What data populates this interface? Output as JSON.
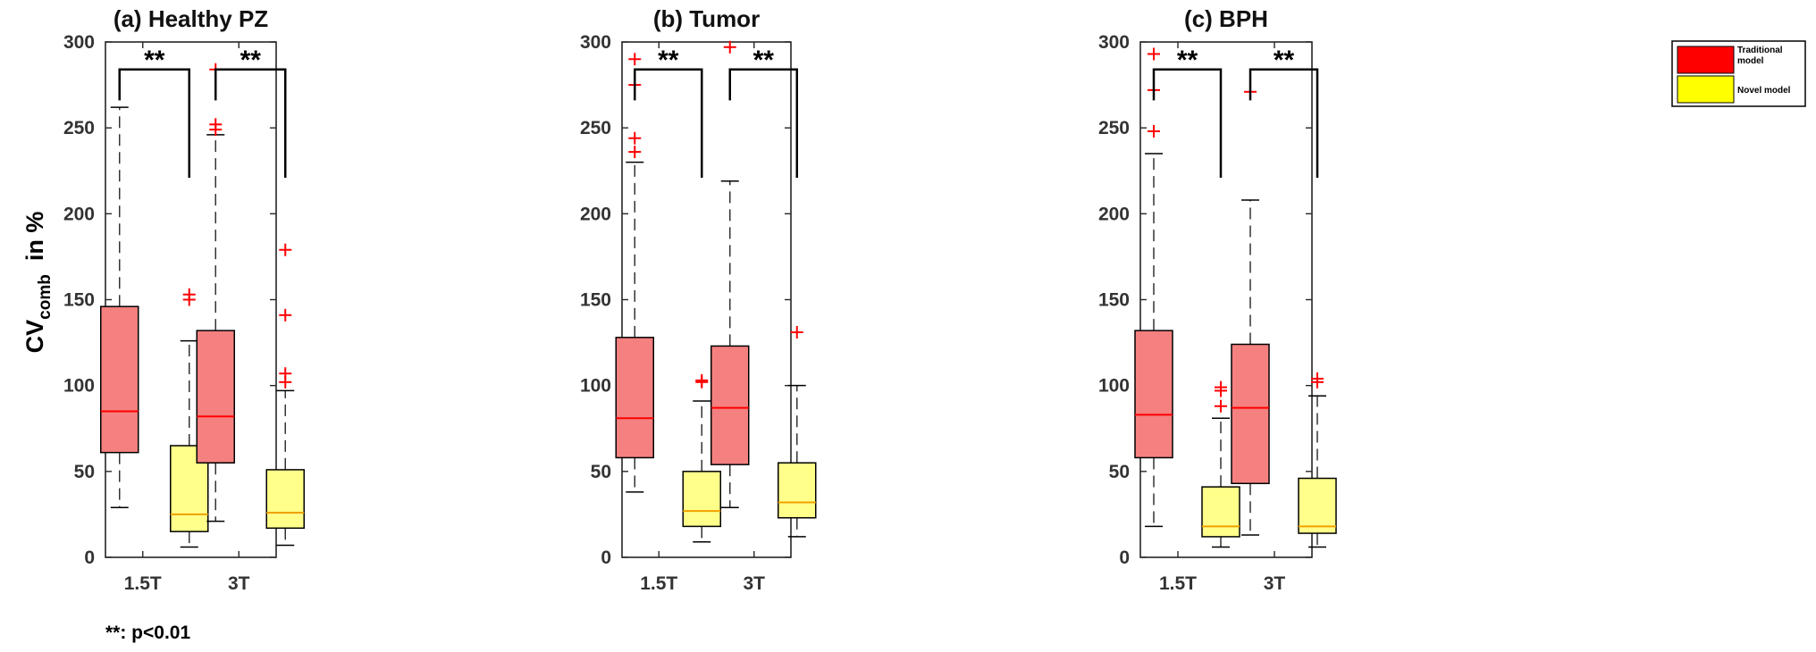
{
  "chart_data": {
    "type": "box",
    "ylabel": {
      "main": "CV",
      "sub": "comb",
      "rest": "  in %"
    },
    "ylim": [
      0,
      300
    ],
    "yticks": [
      0,
      50,
      100,
      150,
      200,
      250,
      300
    ],
    "categories": [
      "1.5T",
      "3T"
    ],
    "significance_label": "**",
    "legend": [
      {
        "name": "Traditional model",
        "color": "#ff0000"
      },
      {
        "name": "Novel model",
        "color": "#ffff00"
      }
    ],
    "colors": {
      "traditional_fill": "#f58080",
      "novel_fill": "#ffff8a",
      "traditional_median": "#ff0000",
      "novel_median": "#f0a000",
      "outlier": "#ff0000"
    },
    "panels": [
      {
        "title": "(a)  Healthy PZ",
        "boxes": [
          {
            "category": "1.5T",
            "series": "Traditional model",
            "whisker_low": 29,
            "q1": 61,
            "median": 85,
            "q3": 146,
            "whisker_high": 262,
            "outliers": []
          },
          {
            "category": "1.5T",
            "series": "Novel model",
            "whisker_low": 6,
            "q1": 15,
            "median": 25,
            "q3": 65,
            "whisker_high": 126,
            "outliers": [
              150,
              153
            ]
          },
          {
            "category": "3T",
            "series": "Traditional model",
            "whisker_low": 21,
            "q1": 55,
            "median": 82,
            "q3": 132,
            "whisker_high": 246,
            "outliers": [
              249,
              252,
              284
            ]
          },
          {
            "category": "3T",
            "series": "Novel model",
            "whisker_low": 7,
            "q1": 17,
            "median": 26,
            "q3": 51,
            "whisker_high": 97,
            "outliers": [
              102,
              107,
              141,
              179
            ]
          }
        ]
      },
      {
        "title": "(b)  Tumor",
        "boxes": [
          {
            "category": "1.5T",
            "series": "Traditional model",
            "whisker_low": 38,
            "q1": 58,
            "median": 81,
            "q3": 128,
            "whisker_high": 230,
            "outliers": [
              236,
              244,
              275,
              290
            ]
          },
          {
            "category": "1.5T",
            "series": "Novel model",
            "whisker_low": 9,
            "q1": 18,
            "median": 27,
            "q3": 50,
            "whisker_high": 91,
            "outliers": [
              102,
              103
            ]
          },
          {
            "category": "3T",
            "series": "Traditional model",
            "whisker_low": 29,
            "q1": 54,
            "median": 87,
            "q3": 123,
            "whisker_high": 219,
            "outliers": [
              297
            ]
          },
          {
            "category": "3T",
            "series": "Novel model",
            "whisker_low": 12,
            "q1": 23,
            "median": 32,
            "q3": 55,
            "whisker_high": 100,
            "outliers": [
              131
            ]
          }
        ]
      },
      {
        "title": "(c)  BPH",
        "boxes": [
          {
            "category": "1.5T",
            "series": "Traditional model",
            "whisker_low": 18,
            "q1": 58,
            "median": 83,
            "q3": 132,
            "whisker_high": 235,
            "outliers": [
              248,
              272,
              293
            ]
          },
          {
            "category": "1.5T",
            "series": "Novel model",
            "whisker_low": 6,
            "q1": 12,
            "median": 18,
            "q3": 41,
            "whisker_high": 81,
            "outliers": [
              88,
              97,
              99
            ]
          },
          {
            "category": "3T",
            "series": "Traditional model",
            "whisker_low": 13,
            "q1": 43,
            "median": 87,
            "q3": 124,
            "whisker_high": 208,
            "outliers": [
              271
            ]
          },
          {
            "category": "3T",
            "series": "Novel model",
            "whisker_low": 6,
            "q1": 14,
            "median": 18,
            "q3": 46,
            "whisker_high": 94,
            "outliers": [
              102,
              104
            ]
          }
        ]
      }
    ],
    "footnote": "**: p<0.01"
  }
}
